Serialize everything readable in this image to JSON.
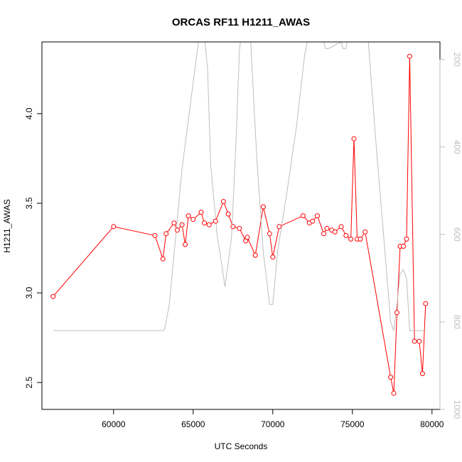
{
  "chart_data": {
    "type": "line",
    "title": "ORCAS RF11 H1211_AWAS",
    "xlabel": "UTC Seconds",
    "ylabel": "H1211_AWAS",
    "xlim": [
      55500,
      80500
    ],
    "ylim": [
      2.35,
      4.4
    ],
    "y2lim": [
      1000,
      160
    ],
    "y2_reversed": true,
    "grid": false,
    "legend": "none",
    "x_ticks": [
      {
        "value": 60000,
        "label": "60000"
      },
      {
        "value": 65000,
        "label": "65000"
      },
      {
        "value": 70000,
        "label": "70000"
      },
      {
        "value": 75000,
        "label": "75000"
      },
      {
        "value": 80000,
        "label": "80000"
      }
    ],
    "y_ticks": [
      {
        "value": 2.5,
        "label": "2.5"
      },
      {
        "value": 3.0,
        "label": "3.0"
      },
      {
        "value": 3.5,
        "label": "3.5"
      },
      {
        "value": 4.0,
        "label": "4.0"
      }
    ],
    "y2_ticks": [
      {
        "value": 200,
        "label": "200"
      },
      {
        "value": 400,
        "label": "400"
      },
      {
        "value": 600,
        "label": "600"
      },
      {
        "value": 800,
        "label": "800"
      },
      {
        "value": 1000,
        "label": "1000"
      }
    ],
    "series": [
      {
        "color": "#ff0000",
        "style": "line-with-open-circles",
        "axis": "left",
        "x": [
          56200,
          60000,
          62600,
          63100,
          63300,
          63800,
          64000,
          64300,
          64500,
          64700,
          65000,
          65500,
          65700,
          66000,
          66400,
          66900,
          67200,
          67500,
          67900,
          68300,
          68400,
          68900,
          69400,
          69800,
          70000,
          70400,
          71900,
          72300,
          72500,
          72800,
          73200,
          73400,
          73700,
          73900,
          74300,
          74600,
          74900,
          75100,
          75300,
          75500,
          75800,
          77400,
          77600,
          77800,
          78000,
          78200,
          78400,
          78600,
          78900,
          79200,
          79400,
          79600
        ],
        "y": [
          2.98,
          3.37,
          3.32,
          3.19,
          3.33,
          3.39,
          3.35,
          3.38,
          3.27,
          3.43,
          3.41,
          3.45,
          3.39,
          3.38,
          3.4,
          3.51,
          3.44,
          3.37,
          3.36,
          3.29,
          3.31,
          3.21,
          3.48,
          3.33,
          3.2,
          3.37,
          3.43,
          3.39,
          3.4,
          3.43,
          3.33,
          3.36,
          3.35,
          3.34,
          3.37,
          3.32,
          3.3,
          3.86,
          3.3,
          3.3,
          3.34,
          2.53,
          2.44,
          2.89,
          3.26,
          3.26,
          3.3,
          4.32,
          2.73,
          2.73,
          2.55,
          2.94
        ]
      },
      {
        "color": "#bebebe",
        "style": "line",
        "axis": "right",
        "x": [
          56200,
          63000,
          63200,
          63500,
          64300,
          65400,
          65600,
          65900,
          66100,
          66500,
          66800,
          67000,
          67400,
          67700,
          67900,
          68200,
          68600,
          69000,
          69400,
          69800,
          70000,
          70300,
          70900,
          71500,
          72000,
          72500,
          73200,
          73300,
          73500,
          74300,
          74400,
          74600,
          75000,
          75500,
          76000,
          76500,
          77000,
          77400,
          77600,
          77800,
          78000,
          78200,
          78400,
          78600,
          78800,
          79200,
          79600
        ],
        "y": [
          820,
          820,
          818,
          760,
          450,
          140,
          110,
          220,
          440,
          600,
          670,
          720,
          610,
          380,
          180,
          90,
          150,
          430,
          640,
          760,
          760,
          640,
          500,
          350,
          190,
          100,
          160,
          175,
          175,
          160,
          175,
          175,
          90,
          80,
          160,
          400,
          620,
          800,
          820,
          760,
          690,
          680,
          700,
          820,
          820,
          820,
          820
        ]
      }
    ]
  }
}
